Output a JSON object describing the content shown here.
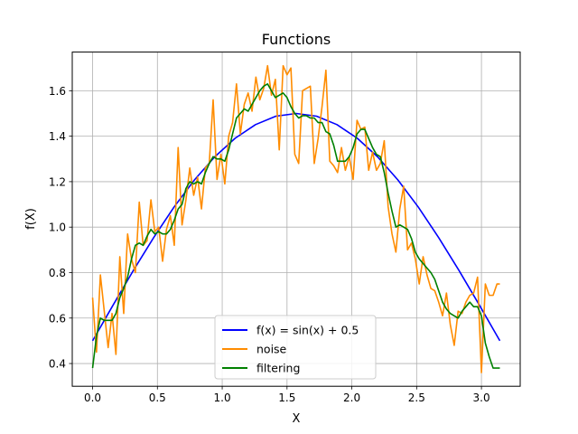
{
  "chart_data": {
    "type": "line",
    "title": "Functions",
    "xlabel": "X",
    "ylabel": "f(X)",
    "xlim": [
      -0.157,
      3.299
    ],
    "ylim": [
      0.3,
      1.77
    ],
    "xticks": [
      0.0,
      0.5,
      1.0,
      1.5,
      2.0,
      2.5,
      3.0
    ],
    "xtick_labels": [
      "0.0",
      "0.5",
      "1.0",
      "1.5",
      "2.0",
      "2.5",
      "3.0"
    ],
    "yticks": [
      0.4,
      0.6,
      0.8,
      1.0,
      1.2,
      1.4,
      1.6
    ],
    "ytick_labels": [
      "0.4",
      "0.6",
      "0.8",
      "1.0",
      "1.2",
      "1.4",
      "1.6"
    ],
    "grid": true,
    "legend_position": "lower center",
    "series": [
      {
        "name": "f(x) = sin(x) + 0.5",
        "color": "#0000ff",
        "x": [
          0.0,
          0.157,
          0.314,
          0.471,
          0.628,
          0.785,
          0.942,
          1.1,
          1.257,
          1.414,
          1.571,
          1.728,
          1.885,
          2.042,
          2.199,
          2.356,
          2.513,
          2.67,
          2.827,
          2.985,
          3.142
        ],
        "y": [
          0.5,
          0.656,
          0.809,
          0.954,
          1.088,
          1.207,
          1.309,
          1.391,
          1.451,
          1.488,
          1.5,
          1.488,
          1.451,
          1.391,
          1.309,
          1.207,
          1.088,
          0.954,
          0.809,
          0.656,
          0.5
        ]
      },
      {
        "name": "noise",
        "color": "#ff8c00",
        "x": [
          0.0,
          0.03,
          0.06,
          0.09,
          0.12,
          0.15,
          0.18,
          0.21,
          0.24,
          0.27,
          0.3,
          0.33,
          0.36,
          0.39,
          0.42,
          0.45,
          0.48,
          0.51,
          0.54,
          0.57,
          0.6,
          0.63,
          0.66,
          0.69,
          0.72,
          0.75,
          0.78,
          0.81,
          0.84,
          0.87,
          0.9,
          0.93,
          0.96,
          0.99,
          1.02,
          1.05,
          1.08,
          1.11,
          1.14,
          1.17,
          1.2,
          1.23,
          1.26,
          1.29,
          1.32,
          1.35,
          1.38,
          1.41,
          1.44,
          1.47,
          1.5,
          1.53,
          1.56,
          1.59,
          1.62,
          1.65,
          1.68,
          1.71,
          1.74,
          1.77,
          1.8,
          1.83,
          1.86,
          1.89,
          1.92,
          1.95,
          1.98,
          2.01,
          2.04,
          2.07,
          2.1,
          2.13,
          2.16,
          2.19,
          2.22,
          2.25,
          2.28,
          2.31,
          2.34,
          2.37,
          2.4,
          2.43,
          2.46,
          2.49,
          2.52,
          2.55,
          2.58,
          2.61,
          2.64,
          2.67,
          2.7,
          2.73,
          2.76,
          2.79,
          2.82,
          2.85,
          2.88,
          2.91,
          2.94,
          2.97,
          3.0,
          3.03,
          3.06,
          3.09,
          3.12,
          3.142
        ],
        "y": [
          0.69,
          0.45,
          0.79,
          0.63,
          0.47,
          0.62,
          0.44,
          0.87,
          0.62,
          0.97,
          0.86,
          0.8,
          1.11,
          0.92,
          0.94,
          1.12,
          0.98,
          1.0,
          0.85,
          0.99,
          1.05,
          0.92,
          1.35,
          1.01,
          1.12,
          1.26,
          1.14,
          1.22,
          1.08,
          1.26,
          1.28,
          1.56,
          1.21,
          1.32,
          1.19,
          1.4,
          1.46,
          1.63,
          1.41,
          1.54,
          1.59,
          1.51,
          1.66,
          1.56,
          1.61,
          1.71,
          1.58,
          1.65,
          1.34,
          1.71,
          1.67,
          1.7,
          1.32,
          1.28,
          1.6,
          1.61,
          1.62,
          1.28,
          1.39,
          1.53,
          1.69,
          1.29,
          1.27,
          1.24,
          1.35,
          1.25,
          1.31,
          1.21,
          1.47,
          1.43,
          1.44,
          1.25,
          1.33,
          1.25,
          1.28,
          1.38,
          1.09,
          0.97,
          0.89,
          1.08,
          1.18,
          0.9,
          0.93,
          0.86,
          0.75,
          0.87,
          0.79,
          0.73,
          0.72,
          0.67,
          0.61,
          0.71,
          0.57,
          0.48,
          0.63,
          0.62,
          0.67,
          0.7,
          0.71,
          0.78,
          0.36,
          0.75,
          0.7,
          0.7,
          0.75,
          0.75
        ]
      },
      {
        "name": "filtering",
        "color": "#008000",
        "x": [
          0.0,
          0.03,
          0.06,
          0.09,
          0.12,
          0.15,
          0.18,
          0.21,
          0.24,
          0.27,
          0.3,
          0.33,
          0.36,
          0.39,
          0.42,
          0.45,
          0.48,
          0.51,
          0.54,
          0.57,
          0.6,
          0.63,
          0.66,
          0.69,
          0.72,
          0.75,
          0.78,
          0.81,
          0.84,
          0.87,
          0.9,
          0.93,
          0.96,
          0.99,
          1.02,
          1.05,
          1.08,
          1.11,
          1.14,
          1.17,
          1.2,
          1.23,
          1.26,
          1.29,
          1.32,
          1.35,
          1.38,
          1.41,
          1.44,
          1.47,
          1.5,
          1.53,
          1.56,
          1.59,
          1.62,
          1.65,
          1.68,
          1.71,
          1.74,
          1.77,
          1.8,
          1.83,
          1.86,
          1.89,
          1.92,
          1.95,
          1.98,
          2.01,
          2.04,
          2.07,
          2.1,
          2.13,
          2.16,
          2.19,
          2.22,
          2.25,
          2.28,
          2.31,
          2.34,
          2.37,
          2.4,
          2.43,
          2.46,
          2.49,
          2.52,
          2.55,
          2.58,
          2.61,
          2.64,
          2.67,
          2.7,
          2.73,
          2.76,
          2.79,
          2.82,
          2.85,
          2.88,
          2.91,
          2.94,
          2.97,
          3.0,
          3.03,
          3.06,
          3.09,
          3.12,
          3.142
        ],
        "y": [
          0.38,
          0.52,
          0.6,
          0.59,
          0.59,
          0.59,
          0.62,
          0.69,
          0.73,
          0.78,
          0.86,
          0.92,
          0.93,
          0.92,
          0.96,
          0.99,
          0.97,
          0.98,
          0.97,
          0.97,
          0.99,
          1.03,
          1.08,
          1.1,
          1.17,
          1.2,
          1.19,
          1.2,
          1.19,
          1.24,
          1.28,
          1.31,
          1.3,
          1.3,
          1.29,
          1.34,
          1.41,
          1.48,
          1.5,
          1.52,
          1.51,
          1.54,
          1.57,
          1.6,
          1.62,
          1.63,
          1.6,
          1.57,
          1.58,
          1.59,
          1.57,
          1.53,
          1.5,
          1.48,
          1.49,
          1.49,
          1.48,
          1.48,
          1.46,
          1.46,
          1.42,
          1.41,
          1.36,
          1.29,
          1.29,
          1.29,
          1.31,
          1.35,
          1.41,
          1.43,
          1.43,
          1.39,
          1.35,
          1.32,
          1.31,
          1.24,
          1.15,
          1.07,
          1.0,
          1.01,
          1.0,
          0.99,
          0.95,
          0.89,
          0.86,
          0.84,
          0.82,
          0.8,
          0.77,
          0.72,
          0.67,
          0.64,
          0.62,
          0.61,
          0.6,
          0.63,
          0.65,
          0.67,
          0.65,
          0.65,
          0.61,
          0.49,
          0.43,
          0.38,
          0.38,
          0.38
        ]
      }
    ]
  }
}
